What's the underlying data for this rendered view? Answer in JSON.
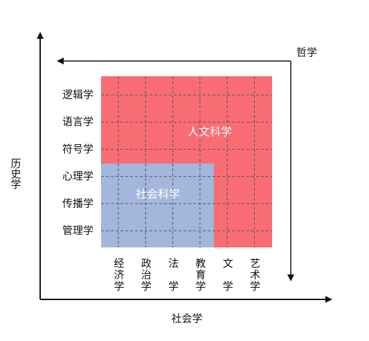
{
  "axes": {
    "vertical": "历史学",
    "horizontal": "社会学",
    "inner": "哲学"
  },
  "rows": [
    "逻辑学",
    "语言学",
    "符号学",
    "心理学",
    "传播学",
    "管理学"
  ],
  "columns": [
    "经济学",
    "政治学",
    "法学",
    "教育学",
    "文学",
    "艺术学"
  ],
  "regions": {
    "humanities": "人文科学",
    "social_sciences": "社会科学"
  }
}
